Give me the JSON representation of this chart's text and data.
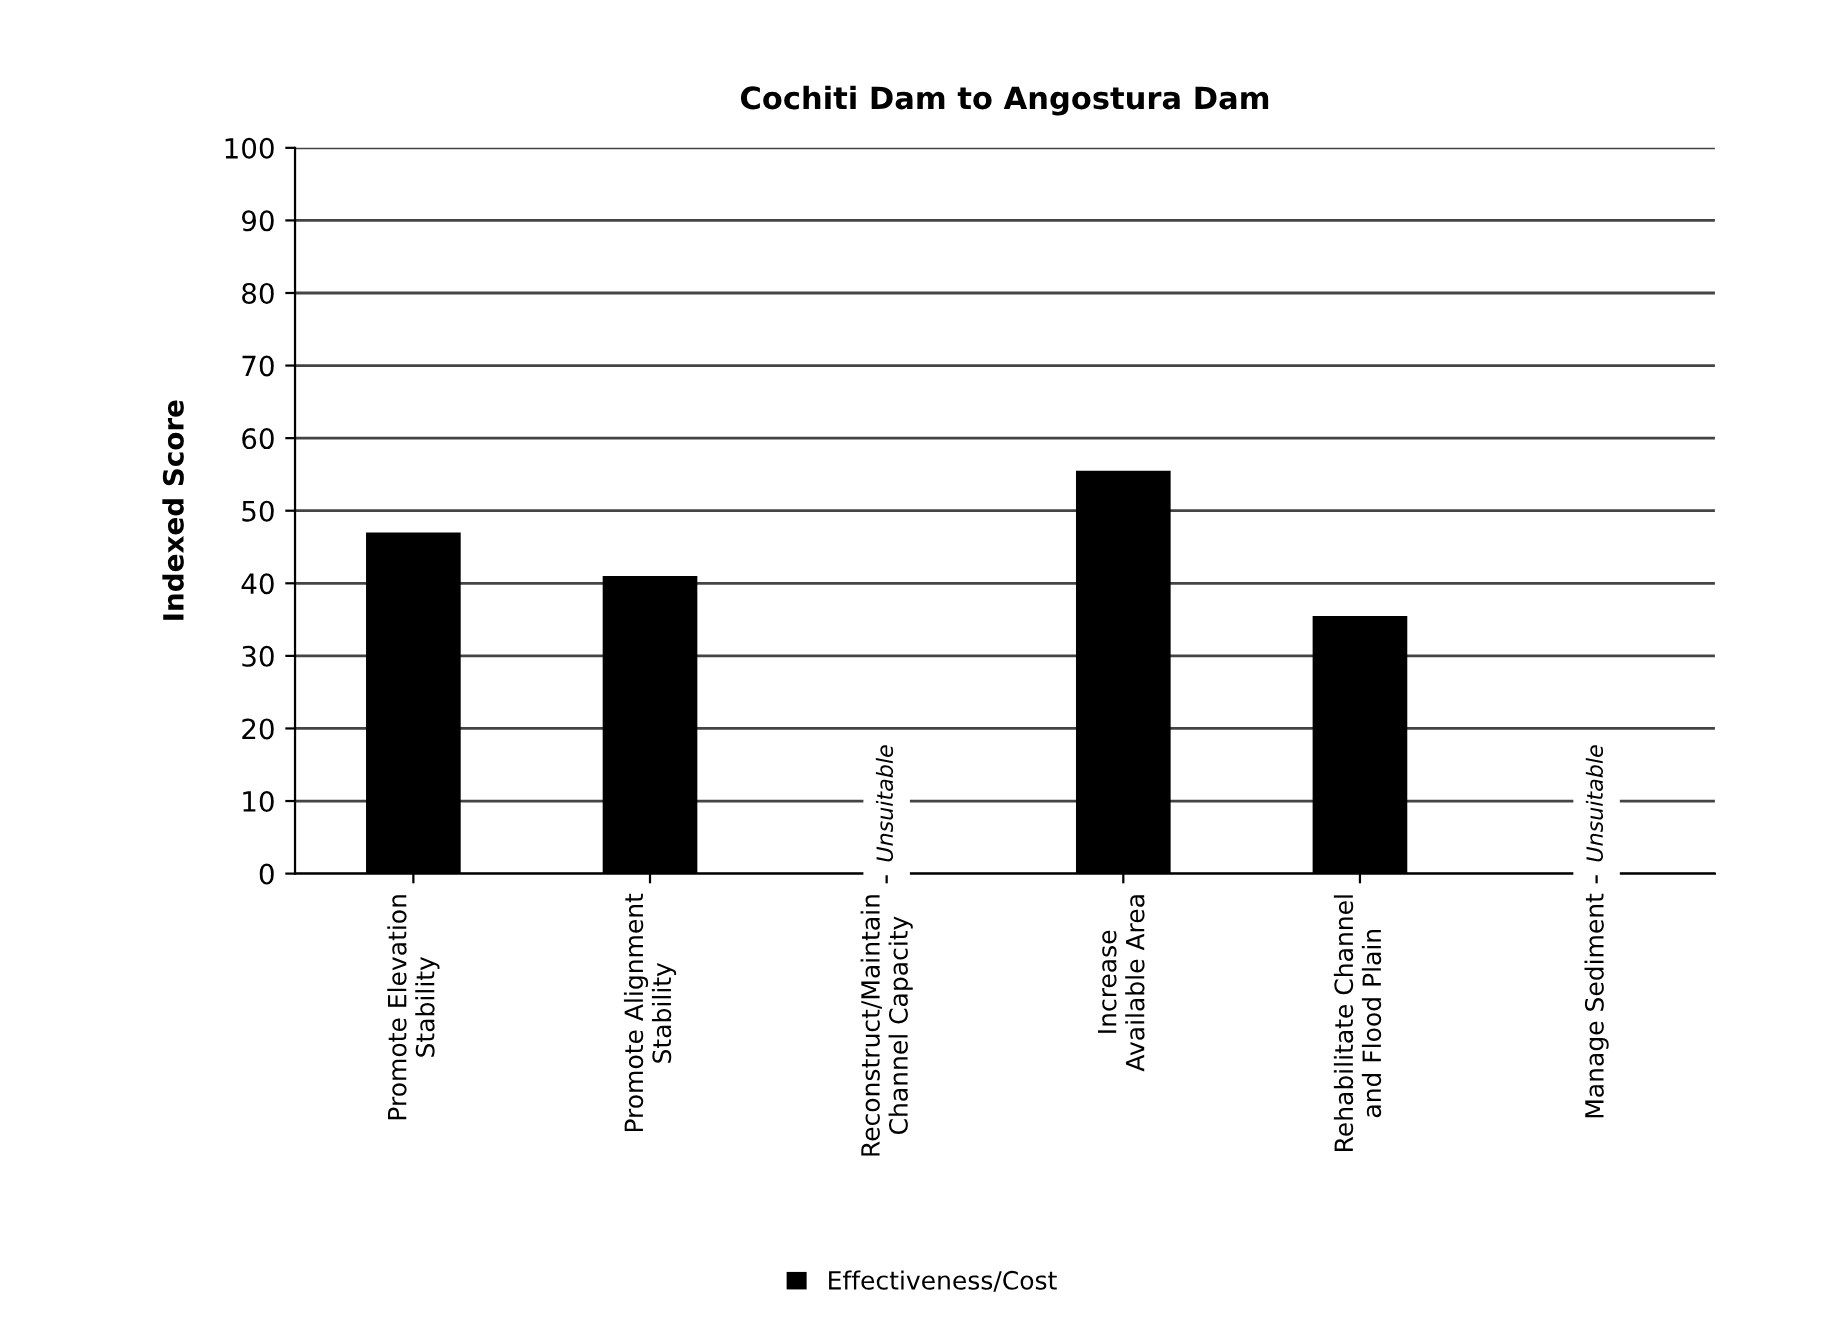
{
  "chart_data": {
    "type": "bar",
    "title": "Cochiti Dam to Angostura Dam",
    "ylabel": "Indexed Score",
    "categories": [
      "Promote Elevation\nStability",
      "Promote Alignment\nStability",
      "Reconstruct/Maintain\nChannel Capacity",
      "Increase\nAvailable Area",
      "Rehabilitate Channel\nand Flood Plain",
      "Manage Sediment"
    ],
    "series": [
      {
        "name": "Effectiveness/Cost",
        "color": "#000000",
        "values": [
          47,
          41,
          null,
          55.5,
          35.5,
          null
        ]
      }
    ],
    "annotations": [
      "Unsuitable",
      "Unsuitable"
    ],
    "ylim": [
      0,
      100
    ],
    "yticks": [
      0,
      10,
      20,
      30,
      40,
      50,
      60,
      70,
      80,
      90,
      100
    ],
    "grid": "y",
    "legend": "bottom"
  }
}
